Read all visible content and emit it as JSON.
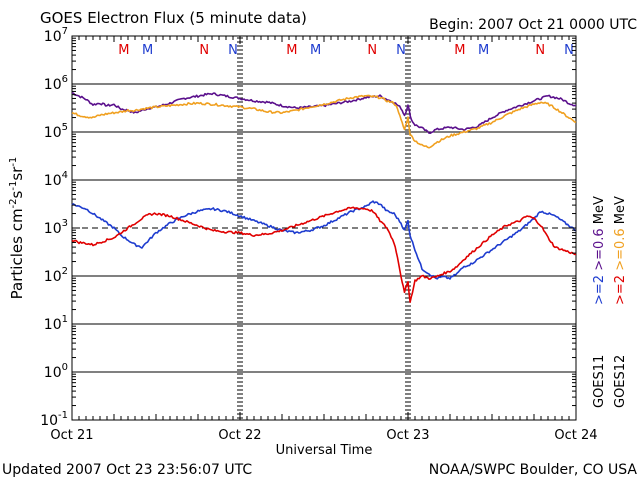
{
  "chart_data": {
    "type": "line",
    "title": "GOES Electron Flux (5 minute data)",
    "begin_label": "Begin: 2007 Oct 21 0000 UTC",
    "xlabel": "Universal Time",
    "ylabel_main": "Particles cm",
    "ylabel_sup1": "-2",
    "ylabel_mid1": "s",
    "ylabel_sup2": "-1",
    "ylabel_mid2": "sr",
    "ylabel_sup3": "-1",
    "x_tick_labels": [
      "Oct 21",
      "Oct 22",
      "Oct 23",
      "Oct 24"
    ],
    "xlim_hours": [
      0,
      72
    ],
    "y_log_range": [
      -1,
      7
    ],
    "y_ticks": [
      {
        "base": "10",
        "exp": "7"
      },
      {
        "base": "10",
        "exp": "6"
      },
      {
        "base": "10",
        "exp": "5"
      },
      {
        "base": "10",
        "exp": "4"
      },
      {
        "base": "10",
        "exp": "3"
      },
      {
        "base": "10",
        "exp": "2"
      },
      {
        "base": "10",
        "exp": "1"
      },
      {
        "base": "10",
        "exp": "0"
      },
      {
        "base": "10",
        "exp": "-1"
      }
    ],
    "gridlines_log": [
      6,
      5,
      4,
      2,
      1,
      0
    ],
    "dashed_threshold_log": 3,
    "dashed_threshold_value": 1000,
    "day_marker_hours": [
      24,
      48
    ],
    "mn_markers": [
      {
        "label": "M",
        "hour": 7.4,
        "color": "#e00000"
      },
      {
        "label": "M",
        "hour": 10.8,
        "color": "#1e3ccf"
      },
      {
        "label": "N",
        "hour": 18.9,
        "color": "#e00000"
      },
      {
        "label": "N",
        "hour": 23.0,
        "color": "#1e3ccf"
      },
      {
        "label": "M",
        "hour": 31.4,
        "color": "#e00000"
      },
      {
        "label": "M",
        "hour": 34.8,
        "color": "#1e3ccf"
      },
      {
        "label": "N",
        "hour": 42.9,
        "color": "#e00000"
      },
      {
        "label": "N",
        "hour": 47.0,
        "color": "#1e3ccf"
      },
      {
        "label": "M",
        "hour": 55.4,
        "color": "#e00000"
      },
      {
        "label": "M",
        "hour": 58.8,
        "color": "#1e3ccf"
      },
      {
        "label": "N",
        "hour": 66.9,
        "color": "#e00000"
      },
      {
        "label": "N",
        "hour": 71.0,
        "color": "#1e3ccf"
      }
    ],
    "series": [
      {
        "name": ">=0.6 MeV GOES11",
        "color": "#5a0f8c",
        "x": [
          0,
          1,
          2,
          3,
          4,
          5,
          6,
          7,
          8,
          9,
          10,
          11,
          12,
          14,
          16,
          18,
          20,
          22,
          24,
          26,
          28,
          30,
          32,
          34,
          36,
          38,
          40,
          42,
          44,
          45,
          46,
          47,
          47.5,
          48,
          48.5,
          49,
          50,
          51,
          52,
          54,
          56,
          58,
          60,
          62,
          64,
          66,
          67,
          68,
          69,
          70,
          71,
          72
        ],
        "log_values": [
          5.82,
          5.75,
          5.68,
          5.57,
          5.6,
          5.55,
          5.57,
          5.48,
          5.45,
          5.4,
          5.45,
          5.5,
          5.52,
          5.6,
          5.7,
          5.75,
          5.8,
          5.75,
          5.7,
          5.65,
          5.62,
          5.55,
          5.5,
          5.52,
          5.55,
          5.6,
          5.65,
          5.72,
          5.75,
          5.68,
          5.62,
          5.5,
          5.35,
          5.55,
          5.25,
          5.15,
          5.08,
          4.98,
          5.05,
          5.1,
          5.05,
          5.12,
          5.3,
          5.45,
          5.55,
          5.65,
          5.7,
          5.75,
          5.72,
          5.68,
          5.6,
          5.55
        ]
      },
      {
        "name": ">=0.6 MeV GOES12",
        "color": "#f0a020",
        "x": [
          0,
          1,
          2,
          3,
          4,
          5,
          6,
          7,
          8,
          9,
          10,
          12,
          14,
          16,
          18,
          20,
          22,
          24,
          26,
          28,
          30,
          32,
          34,
          36,
          38,
          40,
          42,
          44,
          45,
          46,
          46.5,
          47,
          47.5,
          48,
          48.3,
          49,
          50,
          51,
          52,
          53,
          54,
          56,
          58,
          60,
          62,
          64,
          66,
          67,
          68,
          69,
          70,
          71,
          72
        ],
        "log_values": [
          5.4,
          5.35,
          5.32,
          5.3,
          5.35,
          5.38,
          5.4,
          5.42,
          5.45,
          5.45,
          5.48,
          5.52,
          5.55,
          5.58,
          5.6,
          5.58,
          5.55,
          5.52,
          5.48,
          5.42,
          5.4,
          5.45,
          5.52,
          5.58,
          5.65,
          5.72,
          5.75,
          5.72,
          5.65,
          5.6,
          5.5,
          5.25,
          5.05,
          5.3,
          4.95,
          4.82,
          4.72,
          4.68,
          4.78,
          4.85,
          4.92,
          5.0,
          5.08,
          5.2,
          5.35,
          5.48,
          5.58,
          5.62,
          5.58,
          5.5,
          5.4,
          5.3,
          5.2
        ]
      },
      {
        "name": ">=2 MeV GOES11",
        "color": "#1e3ccf",
        "x": [
          0,
          1,
          2,
          3,
          4,
          5,
          6,
          7,
          8,
          9,
          10,
          11,
          12,
          13,
          14,
          16,
          18,
          20,
          22,
          24,
          26,
          28,
          30,
          32,
          34,
          36,
          38,
          40,
          42,
          43,
          44,
          45,
          46,
          47,
          47.5,
          48,
          48.3,
          49,
          50,
          51,
          52,
          53,
          54,
          55,
          56,
          57,
          58,
          60,
          62,
          64,
          66,
          67,
          68,
          69,
          70,
          71,
          72
        ],
        "log_values": [
          3.5,
          3.45,
          3.4,
          3.3,
          3.2,
          3.1,
          3.0,
          2.85,
          2.75,
          2.65,
          2.6,
          2.75,
          2.9,
          3.0,
          3.1,
          3.25,
          3.35,
          3.4,
          3.35,
          3.25,
          3.15,
          3.05,
          2.95,
          2.9,
          2.95,
          3.05,
          3.2,
          3.35,
          3.45,
          3.55,
          3.5,
          3.35,
          3.3,
          3.1,
          2.95,
          3.15,
          2.85,
          2.55,
          2.15,
          2.05,
          1.95,
          1.98,
          1.95,
          2.05,
          2.2,
          2.25,
          2.35,
          2.55,
          2.75,
          2.95,
          3.2,
          3.35,
          3.3,
          3.25,
          3.15,
          3.05,
          2.95
        ]
      },
      {
        "name": ">=2 MeV GOES12",
        "color": "#e00000",
        "x": [
          0,
          1,
          2,
          3,
          4,
          5,
          6,
          7,
          8,
          9,
          10,
          11,
          12,
          14,
          16,
          18,
          20,
          22,
          24,
          26,
          28,
          30,
          32,
          34,
          36,
          38,
          40,
          42,
          43,
          44,
          45,
          46,
          46.5,
          47,
          47.5,
          48,
          48.3,
          49,
          50,
          51,
          52,
          53,
          54,
          55,
          56,
          58,
          60,
          62,
          64,
          65,
          66,
          67,
          68,
          69,
          70,
          71,
          72
        ],
        "log_values": [
          2.75,
          2.7,
          2.68,
          2.65,
          2.7,
          2.75,
          2.8,
          2.9,
          3.0,
          3.1,
          3.2,
          3.28,
          3.3,
          3.25,
          3.15,
          3.05,
          2.95,
          2.92,
          2.9,
          2.85,
          2.88,
          2.95,
          3.05,
          3.15,
          3.25,
          3.35,
          3.42,
          3.4,
          3.35,
          3.15,
          3.0,
          2.7,
          2.4,
          2.0,
          1.65,
          1.9,
          1.45,
          1.9,
          2.0,
          1.95,
          1.98,
          2.05,
          2.1,
          2.2,
          2.35,
          2.6,
          2.85,
          3.05,
          3.15,
          3.25,
          3.2,
          3.05,
          2.8,
          2.6,
          2.55,
          2.5,
          2.45
        ]
      }
    ],
    "right_legend": {
      "col_a": ">=2 >=0.6  MeV",
      "col_a_colors": [
        "#1e3ccf",
        "#5a0f8c",
        "#000000"
      ],
      "col_b": ">=2 >=0.6  MeV",
      "col_b_colors": [
        "#e00000",
        "#f0a020",
        "#000000"
      ],
      "sat_a": "GOES11",
      "sat_b": "GOES12"
    },
    "legend_parts": {
      "ge2": ">=2",
      "ge06": ">=0.6",
      "mev": "MeV"
    }
  },
  "footer": {
    "updated": "Updated 2007 Oct 23 23:56:07 UTC",
    "source": "NOAA/SWPC Boulder, CO USA"
  }
}
